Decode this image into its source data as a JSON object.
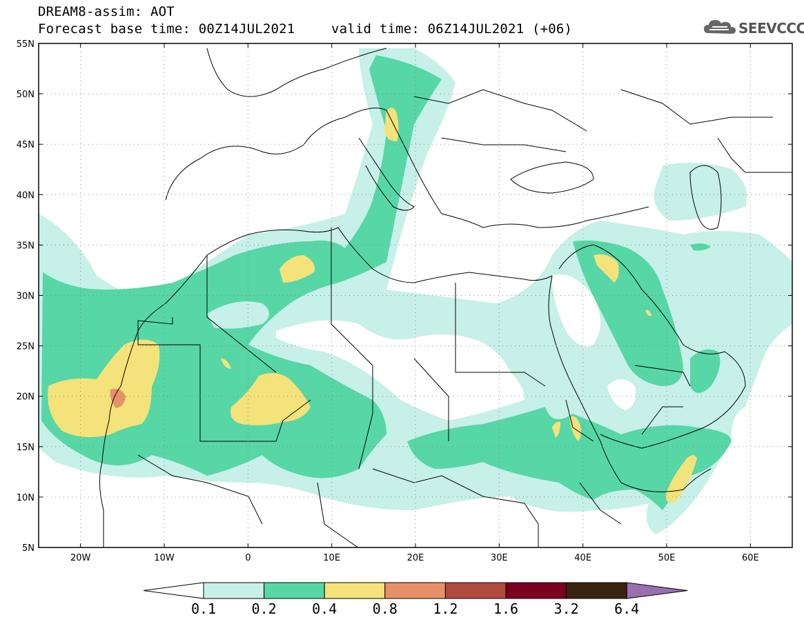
{
  "title": {
    "line1": "DREAM8-assim: AOT",
    "line2": "Forecast base time: 00Z14JUL2021",
    "line3": "valid time: 06Z14JUL2021 (+06)"
  },
  "logo": {
    "text": "SEEVCCC",
    "icon": "cloud-logo-icon"
  },
  "map": {
    "lon_range": [
      -25,
      65
    ],
    "lat_range": [
      5,
      55
    ],
    "lat_ticks": [
      {
        "value": 55,
        "label": "55N"
      },
      {
        "value": 50,
        "label": "50N"
      },
      {
        "value": 45,
        "label": "45N"
      },
      {
        "value": 40,
        "label": "40N"
      },
      {
        "value": 35,
        "label": "35N"
      },
      {
        "value": 30,
        "label": "30N"
      },
      {
        "value": 25,
        "label": "25N"
      },
      {
        "value": 20,
        "label": "20N"
      },
      {
        "value": 15,
        "label": "15N"
      },
      {
        "value": 10,
        "label": "10N"
      },
      {
        "value": 5,
        "label": "5N"
      }
    ],
    "lon_ticks": [
      {
        "value": -20,
        "label": "20W"
      },
      {
        "value": -10,
        "label": "10W"
      },
      {
        "value": 0,
        "label": "0"
      },
      {
        "value": 10,
        "label": "10E"
      },
      {
        "value": 20,
        "label": "20E"
      },
      {
        "value": 30,
        "label": "30E"
      },
      {
        "value": 40,
        "label": "40E"
      },
      {
        "value": 50,
        "label": "50E"
      },
      {
        "value": 60,
        "label": "60E"
      }
    ],
    "grid": "dotted"
  },
  "colorbar": {
    "labels": [
      "0.1",
      "0.2",
      "0.4",
      "0.8",
      "1.2",
      "1.6",
      "3.2",
      "6.4"
    ],
    "colors": [
      "#ffffff",
      "#c6f0e8",
      "#57d6a6",
      "#f4e27a",
      "#e8906a",
      "#b04a3c",
      "#7a0022",
      "#3a2410",
      "#9a6fb0"
    ]
  },
  "levels_colors": {
    "l1": "#c6f0e8",
    "l2": "#57d6a6",
    "l3": "#f4e27a",
    "l4": "#e8906a"
  }
}
